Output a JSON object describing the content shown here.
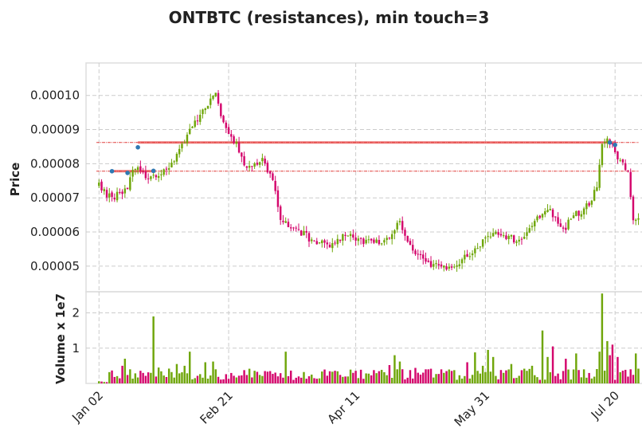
{
  "chart_data": {
    "type": "candlestick",
    "title": "ONTBTC (resistances), min touch=3",
    "price_panel": {
      "ylabel": "Price",
      "ylim": [
        4.25e-05,
        0.0001095
      ],
      "yticks": [
        {
          "value": 5e-05,
          "label": "0.00005"
        },
        {
          "value": 6e-05,
          "label": "0.00006"
        },
        {
          "value": 7e-05,
          "label": "0.00007"
        },
        {
          "value": 8e-05,
          "label": "0.00008"
        },
        {
          "value": 9e-05,
          "label": "0.00009"
        },
        {
          "value": 0.0001,
          "label": "0.00010"
        }
      ]
    },
    "volume_panel": {
      "ylabel": "Volume x 1e7",
      "ylim": [
        0,
        2.6
      ],
      "yticks": [
        {
          "value": 1,
          "label": "1"
        },
        {
          "value": 2,
          "label": "2"
        }
      ]
    },
    "x_range": [
      -5,
      210
    ],
    "xticks": [
      {
        "index": 0,
        "label": "Jan 02"
      },
      {
        "index": 50,
        "label": "Feb 21"
      },
      {
        "index": 99,
        "label": "Apr 11"
      },
      {
        "index": 149,
        "label": "May 31"
      },
      {
        "index": 199,
        "label": "Jul 20"
      }
    ],
    "colors": {
      "up": "#6fa60a",
      "down": "#d4066c",
      "resistance": "#ef7a7a",
      "touch": "#2f79b3"
    },
    "anchors": [
      [
        0,
        7.35e-05
      ],
      [
        5,
        6.95e-05
      ],
      [
        8,
        7.15e-05
      ],
      [
        11,
        7.3e-05
      ],
      [
        13,
        7.75e-05
      ],
      [
        15,
        7.9e-05
      ],
      [
        17,
        7.65e-05
      ],
      [
        20,
        7.6e-05
      ],
      [
        23,
        7.7e-05
      ],
      [
        26,
        7.85e-05
      ],
      [
        30,
        8.2e-05
      ],
      [
        34,
        8.8e-05
      ],
      [
        38,
        9.3e-05
      ],
      [
        41,
        9.65e-05
      ],
      [
        43,
        9.85e-05
      ],
      [
        45,
        0.0001005
      ],
      [
        47,
        9.35e-05
      ],
      [
        50,
        8.85e-05
      ],
      [
        53,
        8.55e-05
      ],
      [
        56,
        7.9e-05
      ],
      [
        59,
        8e-05
      ],
      [
        63,
        8.1e-05
      ],
      [
        67,
        7.6e-05
      ],
      [
        70,
        6.4e-05
      ],
      [
        74,
        6.15e-05
      ],
      [
        78,
        6e-05
      ],
      [
        82,
        5.75e-05
      ],
      [
        86,
        5.75e-05
      ],
      [
        90,
        5.6e-05
      ],
      [
        94,
        5.85e-05
      ],
      [
        98,
        5.9e-05
      ],
      [
        101,
        5.7e-05
      ],
      [
        105,
        5.75e-05
      ],
      [
        109,
        5.7e-05
      ],
      [
        113,
        6e-05
      ],
      [
        116,
        6.25e-05
      ],
      [
        119,
        5.75e-05
      ],
      [
        122,
        5.35e-05
      ],
      [
        126,
        5.1e-05
      ],
      [
        130,
        5e-05
      ],
      [
        134,
        4.9e-05
      ],
      [
        138,
        5.05e-05
      ],
      [
        142,
        5.35e-05
      ],
      [
        145,
        5.45e-05
      ],
      [
        149,
        5.8e-05
      ],
      [
        152,
        6e-05
      ],
      [
        155,
        5.9e-05
      ],
      [
        158,
        5.85e-05
      ],
      [
        161,
        5.75e-05
      ],
      [
        165,
        5.95e-05
      ],
      [
        168,
        6.25e-05
      ],
      [
        171,
        6.55e-05
      ],
      [
        174,
        6.6e-05
      ],
      [
        177,
        6.25e-05
      ],
      [
        180,
        6.15e-05
      ],
      [
        183,
        6.45e-05
      ],
      [
        186,
        6.6e-05
      ],
      [
        189,
        6.8e-05
      ],
      [
        192,
        7.3e-05
      ],
      [
        194,
        8.5e-05
      ],
      [
        196,
        8.8e-05
      ],
      [
        198,
        8.55e-05
      ],
      [
        200,
        8.2e-05
      ],
      [
        202,
        8e-05
      ],
      [
        204,
        7.7e-05
      ],
      [
        206,
        6.4e-05
      ],
      [
        208,
        6.5e-05
      ]
    ],
    "volume_spikes": [
      [
        4,
        0.32
      ],
      [
        9,
        0.5
      ],
      [
        10,
        0.7
      ],
      [
        12,
        0.4
      ],
      [
        21,
        1.9
      ],
      [
        23,
        0.45
      ],
      [
        27,
        0.42
      ],
      [
        30,
        0.55
      ],
      [
        33,
        0.5
      ],
      [
        35,
        0.9
      ],
      [
        41,
        0.6
      ],
      [
        44,
        0.62
      ],
      [
        45,
        0.4
      ],
      [
        64,
        0.35
      ],
      [
        72,
        0.9
      ],
      [
        82,
        0.25
      ],
      [
        112,
        0.52
      ],
      [
        114,
        0.8
      ],
      [
        116,
        0.62
      ],
      [
        122,
        0.44
      ],
      [
        126,
        0.4
      ],
      [
        134,
        0.35
      ],
      [
        142,
        0.6
      ],
      [
        145,
        0.88
      ],
      [
        148,
        0.5
      ],
      [
        150,
        0.95
      ],
      [
        152,
        0.75
      ],
      [
        159,
        0.55
      ],
      [
        167,
        0.5
      ],
      [
        171,
        1.5
      ],
      [
        173,
        0.75
      ],
      [
        175,
        1.05
      ],
      [
        180,
        0.7
      ],
      [
        184,
        0.85
      ],
      [
        193,
        0.9
      ],
      [
        194,
        2.55
      ],
      [
        196,
        1.2
      ],
      [
        197,
        0.8
      ],
      [
        198,
        1.1
      ],
      [
        200,
        0.75
      ],
      [
        207,
        0.85
      ]
    ],
    "resistance_lines": [
      {
        "price": 8.62e-05,
        "x_start": 15,
        "x_end": 199,
        "style": "solid"
      },
      {
        "price": 7.78e-05,
        "x_start": 5,
        "x_end": 22,
        "style": "solid"
      },
      {
        "price": 8.62e-05,
        "x_start": -1,
        "x_end": 208,
        "style": "dashed"
      },
      {
        "price": 7.78e-05,
        "x_start": -1,
        "x_end": 208,
        "style": "dashed"
      }
    ],
    "touch_points": [
      {
        "index": 5,
        "price": 7.78e-05
      },
      {
        "index": 11,
        "price": 7.73e-05
      },
      {
        "index": 15,
        "price": 8.48e-05
      },
      {
        "index": 21,
        "price": 7.79e-05
      },
      {
        "index": 197,
        "price": 8.62e-05
      },
      {
        "index": 199,
        "price": 8.55e-05
      }
    ]
  }
}
